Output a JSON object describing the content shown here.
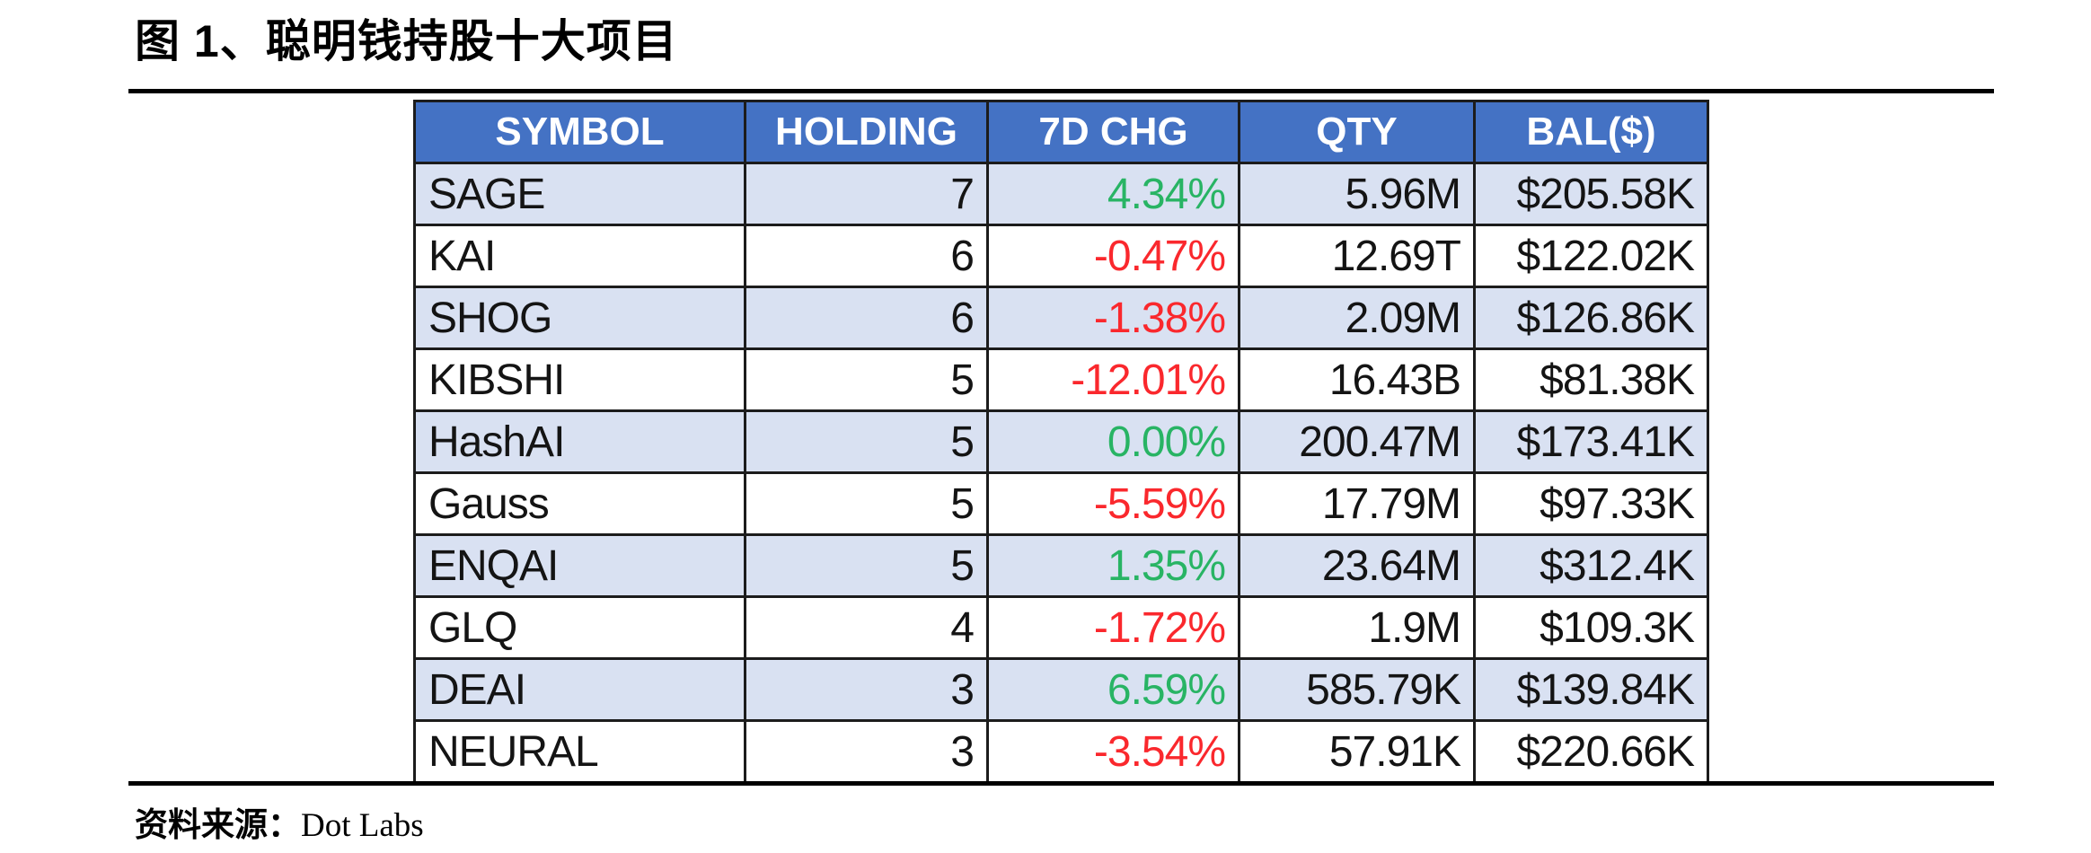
{
  "figure": {
    "title": "图 1、聪明钱持股十大项目",
    "source_label": "资料来源：",
    "source_name": "Dot Labs"
  },
  "colors": {
    "header_bg": "#4472C4",
    "header_text": "#FFFFFF",
    "row_alt_bg": "#D9E1F2",
    "row_bg": "#FFFFFF",
    "positive_green": "#28B464",
    "negative_red": "#FA282D",
    "border": "#1C1C1C"
  },
  "table": {
    "columns": [
      "SYMBOL",
      "HOLDING",
      "7D CHG",
      "QTY",
      "BAL($)"
    ],
    "rows": [
      {
        "symbol": "SAGE",
        "holding": "7",
        "chg": "4.34%",
        "qty": "5.96M",
        "bal": "$205.58K"
      },
      {
        "symbol": "KAI",
        "holding": "6",
        "chg": "-0.47%",
        "qty": "12.69T",
        "bal": "$122.02K"
      },
      {
        "symbol": "SHOG",
        "holding": "6",
        "chg": "-1.38%",
        "qty": "2.09M",
        "bal": "$126.86K"
      },
      {
        "symbol": "KIBSHI",
        "holding": "5",
        "chg": "-12.01%",
        "qty": "16.43B",
        "bal": "$81.38K"
      },
      {
        "symbol": "HashAI",
        "holding": "5",
        "chg": "0.00%",
        "qty": "200.47M",
        "bal": "$173.41K"
      },
      {
        "symbol": "Gauss",
        "holding": "5",
        "chg": "-5.59%",
        "qty": "17.79M",
        "bal": "$97.33K"
      },
      {
        "symbol": "ENQAI",
        "holding": "5",
        "chg": "1.35%",
        "qty": "23.64M",
        "bal": "$312.4K"
      },
      {
        "symbol": "GLQ",
        "holding": "4",
        "chg": "-1.72%",
        "qty": "1.9M",
        "bal": "$109.3K"
      },
      {
        "symbol": "DEAI",
        "holding": "3",
        "chg": "6.59%",
        "qty": "585.79K",
        "bal": "$139.84K"
      },
      {
        "symbol": "NEURAL",
        "holding": "3",
        "chg": "-3.54%",
        "qty": "57.91K",
        "bal": "$220.66K"
      }
    ]
  },
  "chart_data": {
    "type": "table",
    "title": "图 1、聪明钱持股十大项目",
    "columns": [
      "SYMBOL",
      "HOLDING",
      "7D CHG",
      "QTY",
      "BAL($)"
    ],
    "rows": [
      [
        "SAGE",
        7,
        "4.34%",
        "5.96M",
        "$205.58K"
      ],
      [
        "KAI",
        6,
        "-0.47%",
        "12.69T",
        "$122.02K"
      ],
      [
        "SHOG",
        6,
        "-1.38%",
        "2.09M",
        "$126.86K"
      ],
      [
        "KIBSHI",
        5,
        "-12.01%",
        "16.43B",
        "$81.38K"
      ],
      [
        "HashAI",
        5,
        "0.00%",
        "200.47M",
        "$173.41K"
      ],
      [
        "Gauss",
        5,
        "-5.59%",
        "17.79M",
        "$97.33K"
      ],
      [
        "ENQAI",
        5,
        "1.35%",
        "23.64M",
        "$312.4K"
      ],
      [
        "GLQ",
        4,
        "-1.72%",
        "1.9M",
        "$109.3K"
      ],
      [
        "DEAI",
        3,
        "6.59%",
        "585.79K",
        "$139.84K"
      ],
      [
        "NEURAL",
        3,
        "-3.54%",
        "57.91K",
        "$220.66K"
      ]
    ]
  }
}
